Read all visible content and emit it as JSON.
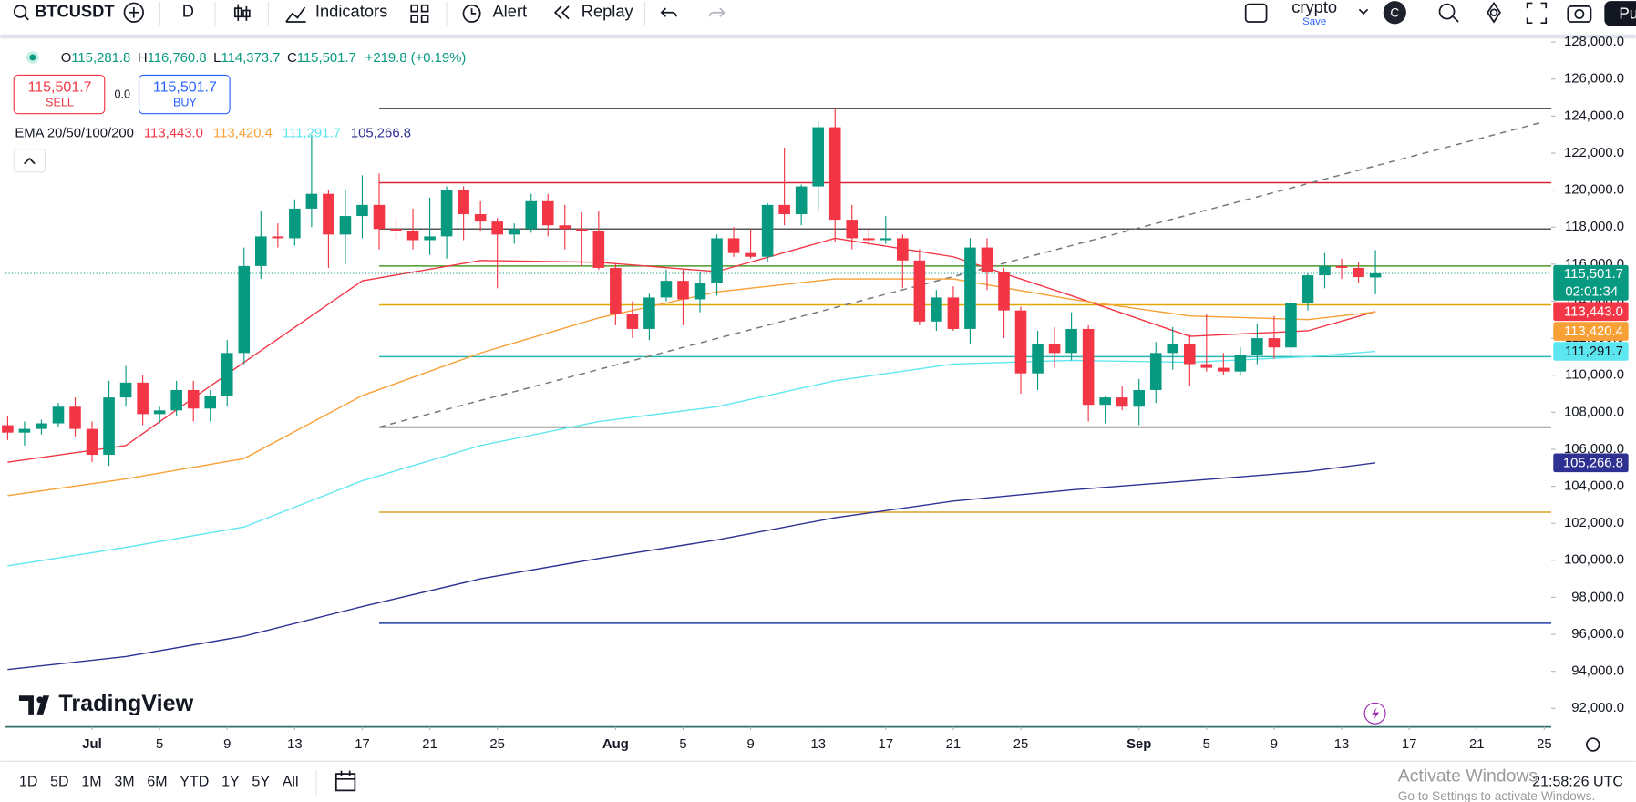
{
  "toolbar": {
    "symbol": "BTCUSDT",
    "interval": "D",
    "indicators": "Indicators",
    "alert": "Alert",
    "replay": "Replay",
    "layout_name": "crypto",
    "save": "Save",
    "avatar": "C",
    "publish": "Pu"
  },
  "legend": {
    "ohlc": [
      {
        "key": "O",
        "value": "115,281.8"
      },
      {
        "key": "H",
        "value": "116,760.8"
      },
      {
        "key": "L",
        "value": "114,373.7"
      },
      {
        "key": "C",
        "value": "115,501.7"
      }
    ],
    "change": "+219.8 (+0.19%)",
    "sell_price": "115,501.7",
    "sell": "SELL",
    "spread": "0.0",
    "buy_price": "115,501.7",
    "buy": "BUY",
    "ema_title": "EMA 20/50/100/200"
  },
  "chart_data": {
    "type": "candlestick",
    "up_color": "#089981",
    "down_color": "#f23645",
    "candles": {
      "dates": [
        "Jun 26",
        "Jun 27",
        "Jun 28",
        "Jun 29",
        "Jun 30",
        "Jul 1",
        "Jul 2",
        "Jul 3",
        "Jul 4",
        "Jul 5",
        "Jul 6",
        "Jul 7",
        "Jul 8",
        "Jul 9",
        "Jul 10",
        "Jul 11",
        "Jul 12",
        "Jul 13",
        "Jul 14",
        "Jul 15",
        "Jul 16",
        "Jul 17",
        "Jul 18",
        "Jul 19",
        "Jul 20",
        "Jul 21",
        "Jul 22",
        "Jul 23",
        "Jul 24",
        "Jul 25",
        "Jul 26",
        "Jul 27",
        "Jul 28",
        "Jul 29",
        "Jul 30",
        "Jul 31",
        "Aug 1",
        "Aug 2",
        "Aug 3",
        "Aug 4",
        "Aug 5",
        "Aug 6",
        "Aug 7",
        "Aug 8",
        "Aug 9",
        "Aug 10",
        "Aug 11",
        "Aug 12",
        "Aug 13",
        "Aug 14",
        "Aug 15",
        "Aug 16",
        "Aug 17",
        "Aug 18",
        "Aug 19",
        "Aug 20",
        "Aug 21",
        "Aug 22",
        "Aug 23",
        "Aug 24",
        "Aug 25",
        "Aug 26",
        "Aug 27",
        "Aug 28",
        "Aug 29",
        "Aug 30",
        "Aug 31",
        "Sep 1",
        "Sep 2",
        "Sep 3",
        "Sep 4",
        "Sep 5",
        "Sep 6",
        "Sep 7",
        "Sep 8",
        "Sep 9",
        "Sep 10",
        "Sep 11",
        "Sep 12",
        "Sep 13",
        "Sep 14",
        "Sep 15"
      ],
      "open": [
        107300,
        106900,
        107100,
        107400,
        108300,
        107100,
        105700,
        108800,
        109600,
        107900,
        108100,
        109200,
        108200,
        108900,
        111200,
        115900,
        117500,
        117400,
        119000,
        119800,
        117600,
        118600,
        119200,
        117900,
        117800,
        117300,
        117500,
        120000,
        118700,
        118300,
        117600,
        117900,
        119400,
        118100,
        117900,
        117800,
        115800,
        113300,
        112500,
        114200,
        115100,
        114100,
        115000,
        117400,
        116600,
        116400,
        119200,
        118700,
        120200,
        123400,
        118400,
        117400,
        117300,
        117400,
        116200,
        112900,
        114200,
        112500,
        116900,
        115600,
        113500,
        110100,
        111700,
        111200,
        112500,
        108400,
        108800,
        108300,
        109200,
        111200,
        111700,
        110600,
        110400,
        110200,
        111100,
        112000,
        111500,
        113900,
        115400,
        115900,
        115800,
        115281.8
      ],
      "high": [
        107800,
        107500,
        107600,
        108500,
        108800,
        107500,
        109700,
        110500,
        110000,
        108300,
        109700,
        109700,
        109200,
        111900,
        116900,
        118900,
        118200,
        119500,
        123000,
        120000,
        120000,
        120800,
        120900,
        118500,
        119000,
        119600,
        120200,
        120200,
        119400,
        118500,
        118200,
        119800,
        119800,
        119200,
        118800,
        118900,
        116000,
        114000,
        114400,
        115700,
        115700,
        115600,
        117600,
        118000,
        117900,
        119300,
        122300,
        120300,
        123700,
        124400,
        119200,
        117900,
        118600,
        117600,
        116800,
        114600,
        114800,
        117400,
        117400,
        115800,
        113700,
        112400,
        112600,
        113400,
        112700,
        108900,
        109400,
        109800,
        111800,
        112600,
        112200,
        113300,
        111200,
        111500,
        112800,
        113200,
        114300,
        115500,
        116600,
        116300,
        116100,
        116760.8
      ],
      "low": [
        106500,
        106200,
        106800,
        107200,
        106700,
        105300,
        105100,
        108300,
        107300,
        107400,
        107800,
        107500,
        107500,
        108300,
        110600,
        115200,
        116900,
        117000,
        118000,
        115800,
        116000,
        117400,
        116800,
        117300,
        116800,
        116500,
        116300,
        117300,
        117800,
        114700,
        117100,
        117700,
        117500,
        116800,
        115900,
        115700,
        112700,
        112000,
        111900,
        114000,
        112700,
        113400,
        114300,
        116400,
        116300,
        116100,
        118100,
        118100,
        118900,
        117200,
        116800,
        117000,
        117100,
        114700,
        112700,
        112400,
        112400,
        111700,
        114600,
        112000,
        109000,
        109200,
        110400,
        110800,
        107500,
        107400,
        108100,
        107300,
        108500,
        110300,
        109400,
        110200,
        110000,
        110000,
        110600,
        110900,
        110900,
        113500,
        114700,
        115200,
        115000,
        114373.7
      ],
      "close": [
        106900,
        107100,
        107400,
        108300,
        107100,
        105700,
        108800,
        109600,
        107900,
        108100,
        109200,
        108200,
        108900,
        111200,
        115900,
        117500,
        117400,
        119000,
        119800,
        117600,
        118600,
        119200,
        117900,
        117800,
        117300,
        117500,
        120000,
        118700,
        118300,
        117600,
        117900,
        119400,
        118100,
        117900,
        117800,
        115800,
        113300,
        112500,
        114200,
        115100,
        114100,
        115000,
        117400,
        116600,
        116400,
        119200,
        118700,
        120200,
        123400,
        118400,
        117400,
        117300,
        117400,
        116200,
        112900,
        114200,
        112500,
        116900,
        115600,
        113500,
        110100,
        111700,
        111200,
        112500,
        108400,
        108800,
        108300,
        109200,
        111200,
        111700,
        110600,
        110400,
        110200,
        111100,
        112000,
        111500,
        113900,
        115400,
        115900,
        115800,
        115300,
        115501.7
      ]
    },
    "last_price_label": "115,501.7",
    "countdown": "02:01:34",
    "series": [
      {
        "color": "#f23645",
        "dates": [
          "Jun 26",
          "Jul 3",
          "Jul 10",
          "Jul 17",
          "Jul 24",
          "Jul 31",
          "Aug 7",
          "Aug 14",
          "Aug 21",
          "Aug 28",
          "Sep 4",
          "Sep 11",
          "Sep 15"
        ],
        "values": [
          105300,
          106200,
          110700,
          115100,
          116200,
          116100,
          115600,
          117400,
          116400,
          114300,
          112100,
          112400,
          113443.0
        ],
        "value_label": "113,443.0"
      },
      {
        "color": "#f7a035",
        "dates": [
          "Jun 26",
          "Jul 3",
          "Jul 10",
          "Jul 17",
          "Jul 24",
          "Jul 31",
          "Aug 7",
          "Aug 14",
          "Aug 21",
          "Aug 28",
          "Sep 4",
          "Sep 11",
          "Sep 15"
        ],
        "values": [
          103500,
          104400,
          105500,
          108900,
          111200,
          113100,
          114500,
          115200,
          115200,
          114100,
          113200,
          113000,
          113420.4
        ],
        "value_label": "113,420.4"
      },
      {
        "color": "#5ce6f0",
        "dates": [
          "Jun 26",
          "Jul 3",
          "Jul 10",
          "Jul 17",
          "Jul 24",
          "Jul 31",
          "Aug 7",
          "Aug 14",
          "Aug 21",
          "Aug 28",
          "Sep 4",
          "Sep 11",
          "Sep 15"
        ],
        "values": [
          99700,
          100700,
          101800,
          104300,
          106200,
          107500,
          108300,
          109700,
          110600,
          110800,
          110700,
          111000,
          111291.7
        ],
        "value_label": "111,291.7"
      },
      {
        "color": "#2e3192",
        "dates": [
          "Jun 26",
          "Jul 3",
          "Jul 10",
          "Jul 17",
          "Jul 24",
          "Jul 31",
          "Aug 7",
          "Aug 14",
          "Aug 21",
          "Aug 28",
          "Sep 4",
          "Sep 11",
          "Sep 15"
        ],
        "values": [
          94100,
          94800,
          95900,
          97500,
          99000,
          100100,
          101100,
          102300,
          103200,
          103800,
          104300,
          104800,
          105266.8
        ],
        "value_label": "105,266.8"
      }
    ],
    "hlines": [
      {
        "value": 124400,
        "color": "#555555"
      },
      {
        "value": 120400,
        "color": "#d62339"
      },
      {
        "value": 117900,
        "color": "#555555"
      },
      {
        "value": 115900,
        "color": "#4c9a2a"
      },
      {
        "value": 113800,
        "color": "#e0a800"
      },
      {
        "value": 111000,
        "color": "#26b5b0"
      },
      {
        "value": 107200,
        "color": "#333333"
      },
      {
        "value": 102600,
        "color": "#d9a020"
      },
      {
        "value": 96600,
        "color": "#1f3fa8"
      }
    ],
    "hline_start": "Jul 18",
    "trendline": {
      "dates": [
        "Jul 18",
        "Sep 25"
      ],
      "values": [
        107200,
        123700
      ],
      "color": "#777777"
    },
    "ylim": [
      91000,
      128300
    ],
    "yticks": [
      {
        "value": 92000,
        "label": "92,000.0"
      },
      {
        "value": 94000,
        "label": "94,000.0"
      },
      {
        "value": 96000,
        "label": "96,000.0"
      },
      {
        "value": 98000,
        "label": "98,000.0"
      },
      {
        "value": 100000,
        "label": "100,000.0"
      },
      {
        "value": 102000,
        "label": "102,000.0"
      },
      {
        "value": 104000,
        "label": "104,000.0"
      },
      {
        "value": 106000,
        "label": "106,000.0"
      },
      {
        "value": 108000,
        "label": "108,000.0"
      },
      {
        "value": 110000,
        "label": "110,000.0"
      },
      {
        "value": 112000,
        "label": "112,000.0"
      },
      {
        "value": 114000,
        "label": "114,000.0"
      },
      {
        "value": 116000,
        "label": "116,000.0"
      },
      {
        "value": 118000,
        "label": "118,000.0"
      },
      {
        "value": 120000,
        "label": "120,000.0"
      },
      {
        "value": 122000,
        "label": "122,000.0"
      },
      {
        "value": 124000,
        "label": "124,000.0"
      },
      {
        "value": 126000,
        "label": "126,000.0"
      },
      {
        "value": 128000,
        "label": "128,000.0"
      }
    ],
    "xticks": [
      {
        "value": "Jul 1",
        "label": "Jul"
      },
      {
        "value": "Jul 5",
        "label": "5"
      },
      {
        "value": "Jul 9",
        "label": "9"
      },
      {
        "value": "Jul 13",
        "label": "13"
      },
      {
        "value": "Jul 17",
        "label": "17"
      },
      {
        "value": "Jul 21",
        "label": "21"
      },
      {
        "value": "Jul 25",
        "label": "25"
      },
      {
        "value": "Aug 1",
        "label": "Aug"
      },
      {
        "value": "Aug 5",
        "label": "5"
      },
      {
        "value": "Aug 9",
        "label": "9"
      },
      {
        "value": "Aug 13",
        "label": "13"
      },
      {
        "value": "Aug 17",
        "label": "17"
      },
      {
        "value": "Aug 21",
        "label": "21"
      },
      {
        "value": "Aug 25",
        "label": "25"
      },
      {
        "value": "Sep 1",
        "label": "Sep"
      },
      {
        "value": "Sep 5",
        "label": "5"
      },
      {
        "value": "Sep 9",
        "label": "9"
      },
      {
        "value": "Sep 13",
        "label": "13"
      },
      {
        "value": "Sep 17",
        "label": "17"
      },
      {
        "value": "Sep 21",
        "label": "21"
      },
      {
        "value": "Sep 25",
        "label": "25"
      }
    ],
    "grid": false
  },
  "watermark": "TradingView",
  "bottom_bar": {
    "ranges": [
      "1D",
      "5D",
      "1M",
      "3M",
      "6M",
      "YTD",
      "1Y",
      "5Y",
      "All"
    ],
    "time": "21:58:26 UTC"
  },
  "os_overlay": {
    "title": "Activate Windows",
    "subtitle": "Go to Settings to activate Windows."
  }
}
